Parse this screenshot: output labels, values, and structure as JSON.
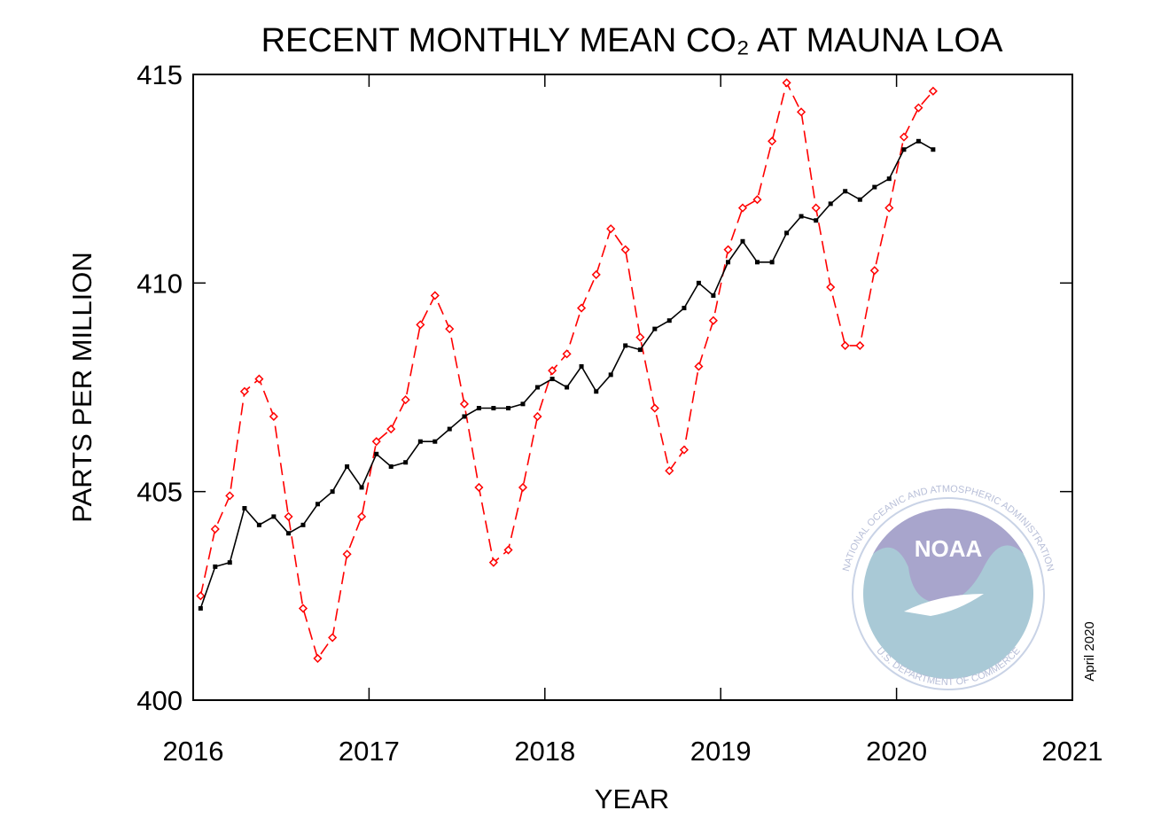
{
  "chart_data": {
    "type": "line",
    "title": "RECENT MONTHLY MEAN CO₂ AT MAUNA LOA",
    "xlabel": "YEAR",
    "ylabel": "PARTS PER MILLION",
    "annotation": "April 2020",
    "logo": {
      "text": "NOAA",
      "ring": "NATIONAL OCEANIC AND ATMOSPHERIC ADMINISTRATION",
      "bottom": "U.S. DEPARTMENT OF COMMERCE"
    },
    "x": [
      2016.042,
      2016.125,
      2016.208,
      2016.292,
      2016.375,
      2016.458,
      2016.542,
      2016.625,
      2016.708,
      2016.792,
      2016.875,
      2016.958,
      2017.042,
      2017.125,
      2017.208,
      2017.292,
      2017.375,
      2017.458,
      2017.542,
      2017.625,
      2017.708,
      2017.792,
      2017.875,
      2017.958,
      2018.042,
      2018.125,
      2018.208,
      2018.292,
      2018.375,
      2018.458,
      2018.542,
      2018.625,
      2018.708,
      2018.792,
      2018.875,
      2018.958,
      2019.042,
      2019.125,
      2019.208,
      2019.292,
      2019.375,
      2019.458,
      2019.542,
      2019.625,
      2019.708,
      2019.792,
      2019.875,
      2019.958,
      2020.042,
      2020.125,
      2020.208
    ],
    "series": [
      {
        "color": "#ff0000",
        "style": "dashed",
        "marker": "diamond",
        "values": [
          402.5,
          404.1,
          404.9,
          407.4,
          407.7,
          406.8,
          404.4,
          402.2,
          401.0,
          401.5,
          403.5,
          404.4,
          406.2,
          406.5,
          407.2,
          409.0,
          409.7,
          408.9,
          407.1,
          405.1,
          403.3,
          403.6,
          405.1,
          406.8,
          407.9,
          408.3,
          409.4,
          410.2,
          411.3,
          410.8,
          408.7,
          407.0,
          405.5,
          406.0,
          408.0,
          409.1,
          410.8,
          411.8,
          412.0,
          413.4,
          414.8,
          414.1,
          411.8,
          409.9,
          408.5,
          408.5,
          410.3,
          411.8,
          413.5,
          414.2,
          414.6
        ]
      },
      {
        "color": "#000000",
        "style": "solid",
        "marker": "square",
        "values": [
          402.2,
          403.2,
          403.3,
          404.6,
          404.2,
          404.4,
          404.0,
          404.2,
          404.7,
          405.0,
          405.6,
          405.1,
          405.9,
          405.6,
          405.7,
          406.2,
          406.2,
          406.5,
          406.8,
          407.0,
          407.0,
          407.0,
          407.1,
          407.5,
          407.7,
          407.5,
          408.0,
          407.4,
          407.8,
          408.5,
          408.4,
          408.9,
          409.1,
          409.4,
          410.0,
          409.7,
          410.5,
          411.0,
          410.5,
          410.5,
          411.2,
          411.6,
          411.5,
          411.9,
          412.2,
          412.0,
          412.3,
          412.5,
          413.2,
          413.4,
          413.2
        ]
      }
    ],
    "xlim": [
      2016,
      2021
    ],
    "xticks": [
      2016,
      2017,
      2018,
      2019,
      2020,
      2021
    ],
    "ylim": [
      400,
      415
    ],
    "yticks": [
      400,
      405,
      410,
      415
    ],
    "grid": false
  }
}
